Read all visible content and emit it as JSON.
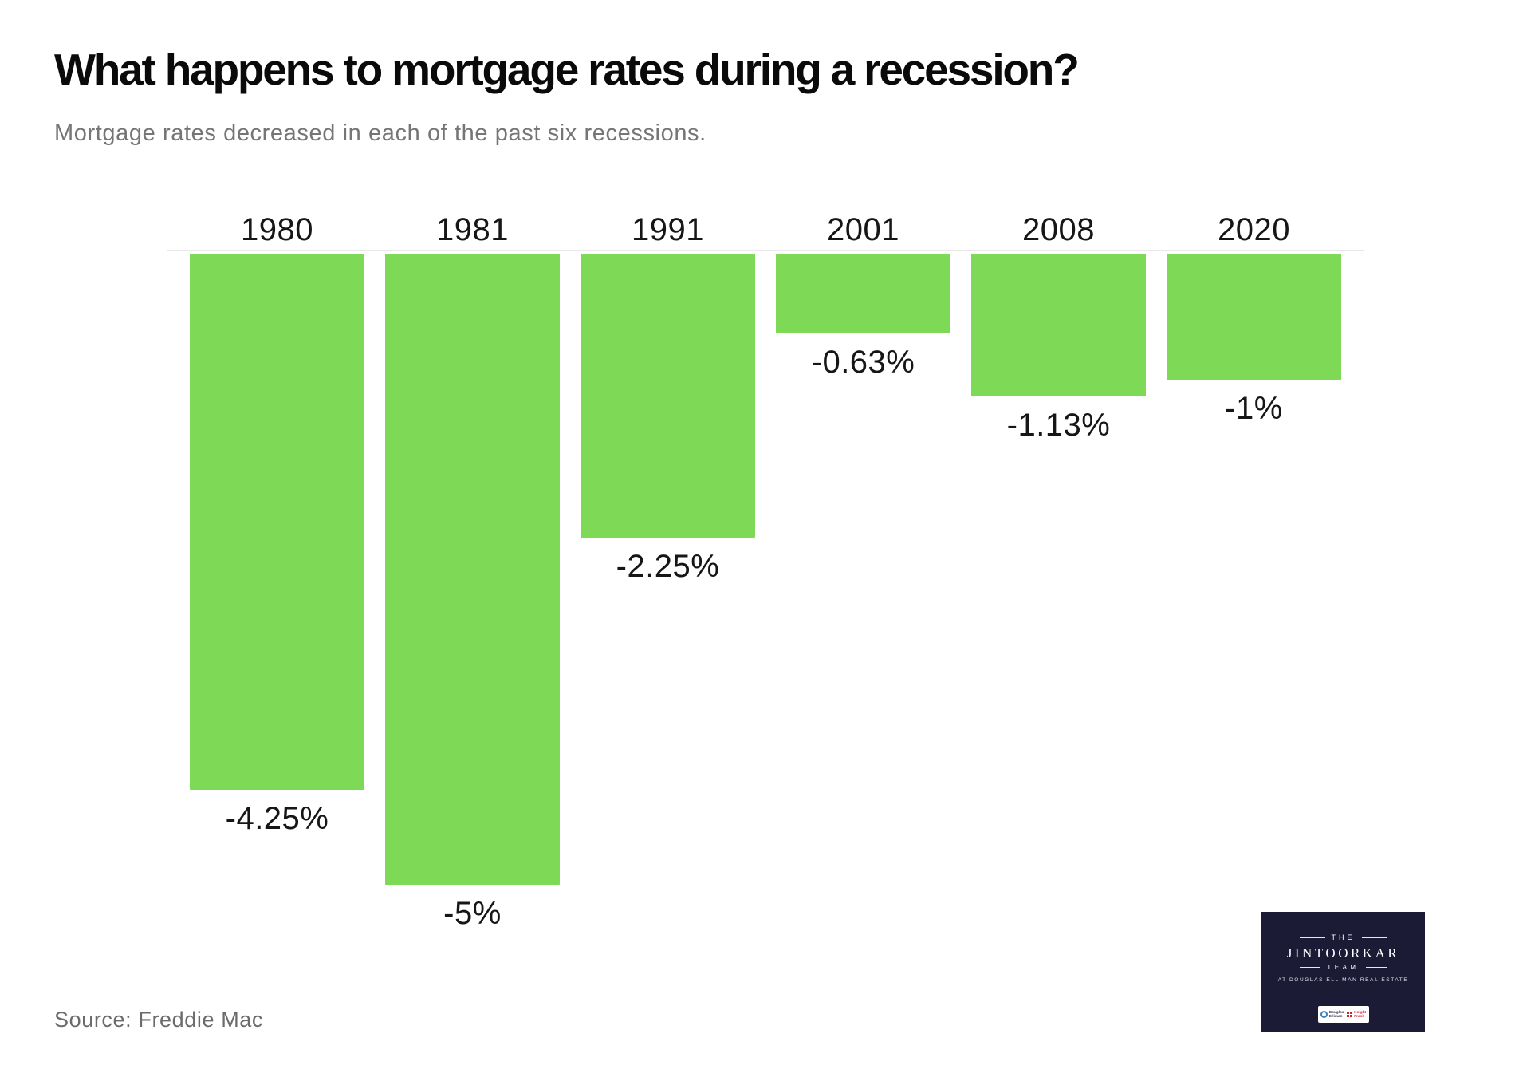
{
  "header": {
    "title": "What happens to mortgage rates during a recession?",
    "subtitle": "Mortgage rates decreased in each of the past six recessions."
  },
  "chart_data": {
    "type": "bar",
    "orientation": "vertical",
    "title": "What happens to mortgage rates during a recession?",
    "subtitle": "Mortgage rates decreased in each of the past six recessions.",
    "categories": [
      "1980",
      "1981",
      "1991",
      "2001",
      "2008",
      "2020"
    ],
    "values": [
      -4.25,
      -5,
      -2.25,
      -0.63,
      -1.13,
      -1
    ],
    "value_labels": [
      "-4.25%",
      "-5%",
      "-2.25%",
      "-0.63%",
      "-1.13%",
      "-1%"
    ],
    "xlabel": "",
    "ylabel": "",
    "ylim": [
      -5,
      0
    ],
    "grid": false,
    "legend": false,
    "bar_color": "#7ed957",
    "baseline_color": "#e8e8e8",
    "source": "Freddie Mac"
  },
  "footer": {
    "source": "Source: Freddie Mac"
  },
  "logo": {
    "line1": "THE",
    "line2": "JINTOORKAR",
    "line3": "TEAM",
    "line4": "AT DOUGLAS ELLIMAN REAL ESTATE",
    "bg_color": "#1b1b36",
    "badge": {
      "douglas_elliman_line1": "Douglas",
      "douglas_elliman_line2": "Elliman",
      "knight_frank_line1": "Knight",
      "knight_frank_line2": "Frank"
    }
  },
  "colors": {
    "background": "#ffffff",
    "accent_green": "#7ed957",
    "title_text": "#0a0a0a",
    "muted_text": "#757575",
    "label_text": "#161616",
    "logo_navy": "#1b1b36",
    "douglas_elliman_blue": "#3d7fb5",
    "knight_frank_red": "#d01f2f"
  }
}
